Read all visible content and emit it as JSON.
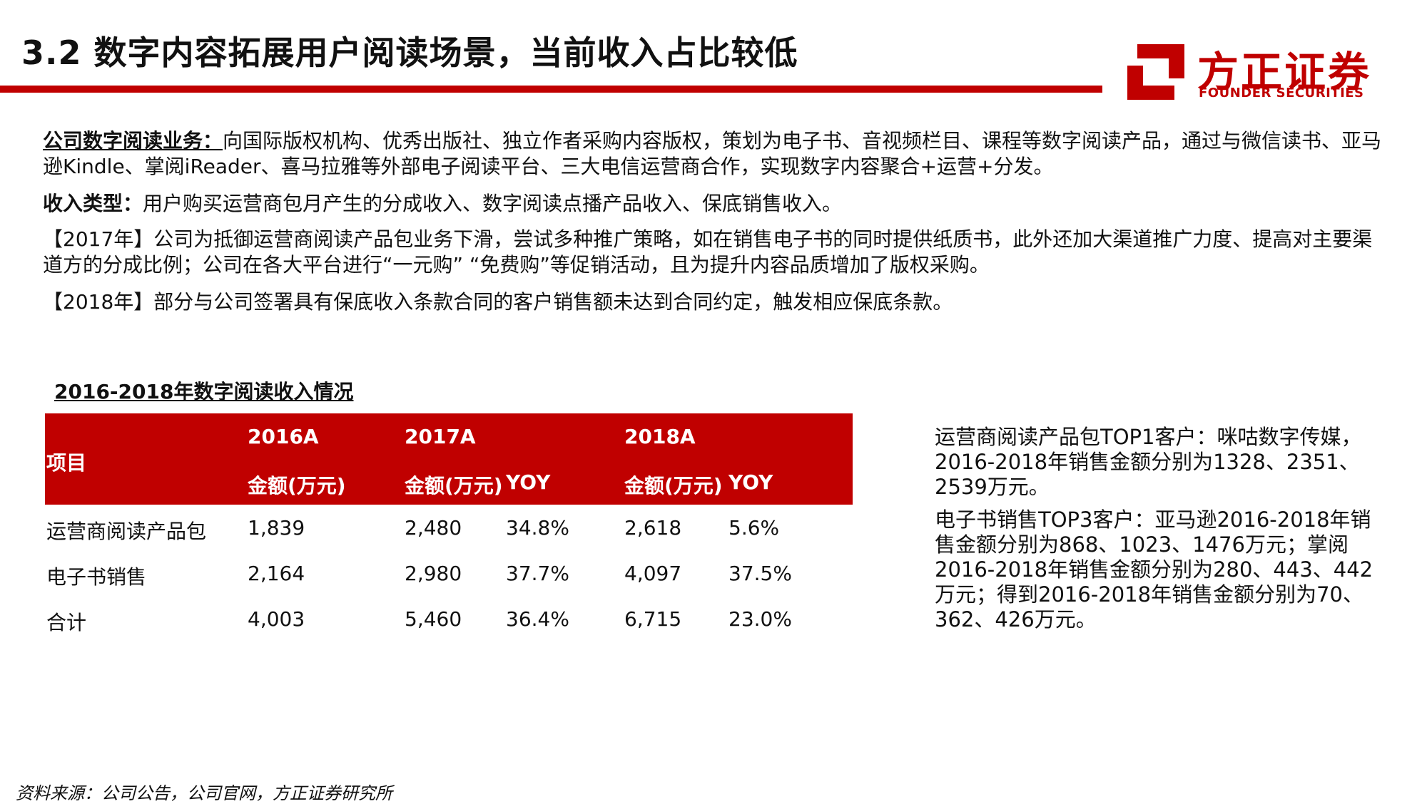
{
  "header": {
    "title": "3.2 数字内容拓展用户阅读场景，当前收入占比较低",
    "accent_color": "#c00000"
  },
  "logo": {
    "name_cn": "方正证券",
    "name_en": "FOUNDER SECURITIES",
    "icon": "founder-logo-mark"
  },
  "paragraphs": {
    "p1_label": "公司数字阅读业务：",
    "p1_text": "向国际版权机构、优秀出版社、独立作者采购内容版权，策划为电子书、音视频栏目、课程等数字阅读产品，通过与微信读书、亚马逊Kindle、掌阅iReader、喜马拉雅等外部电子阅读平台、三大电信运营商合作，实现数字内容聚合+运营+分发。",
    "p2_label": "收入类型：",
    "p2_text": "用户购买运营商包月产生的分成收入、数字阅读点播产品收入、保底销售收入。",
    "p3_text": "【2017年】公司为抵御运营商阅读产品包业务下滑，尝试多种推广策略，如在销售电子书的同时提供纸质书，此外还加大渠道推广力度、提高对主要渠道方的分成比例；公司在各大平台进行“一元购” “免费购”等促销活动，且为提升内容品质增加了版权采购。",
    "p4_text": "【2018年】部分与公司签署具有保底收入条款合同的客户销售额未达到合同约定，触发相应保底条款。"
  },
  "table": {
    "title": "2016-2018年数字阅读收入情况",
    "header": {
      "item": "项目",
      "y2016": "2016A",
      "y2017": "2017A",
      "y2018": "2018A",
      "amount_2016": "金额(万元)",
      "amount_2017": "金额(万元)",
      "yoy_2017": "YOY",
      "amount_2018": "金额(万元)",
      "yoy_2018": "YOY"
    },
    "rows": [
      {
        "item": "运营商阅读产品包",
        "a2016": "1,839",
        "a2017": "2,480",
        "yoy2017": "34.8%",
        "a2018": "2,618",
        "yoy2018": "5.6%"
      },
      {
        "item": "电子书销售",
        "a2016": "2,164",
        "a2017": "2,980",
        "yoy2017": "37.7%",
        "a2018": "4,097",
        "yoy2018": "37.5%"
      },
      {
        "item": "合计",
        "a2016": "4,003",
        "a2017": "5,460",
        "yoy2017": "36.4%",
        "a2018": "6,715",
        "yoy2018": "23.0%"
      }
    ]
  },
  "side_notes": {
    "note1": "运营商阅读产品包TOP1客户：咪咕数字传媒，2016-2018年销售金额分别为1328、2351、2539万元。",
    "note2": "电子书销售TOP3客户：亚马逊2016-2018年销售金额分别为868、1023、1476万元；掌阅2016-2018年销售金额分别为280、443、442万元；得到2016-2018年销售金额分别为70、362、426万元。"
  },
  "footer": {
    "source": "资料来源：公司公告，公司官网，方正证券研究所"
  }
}
